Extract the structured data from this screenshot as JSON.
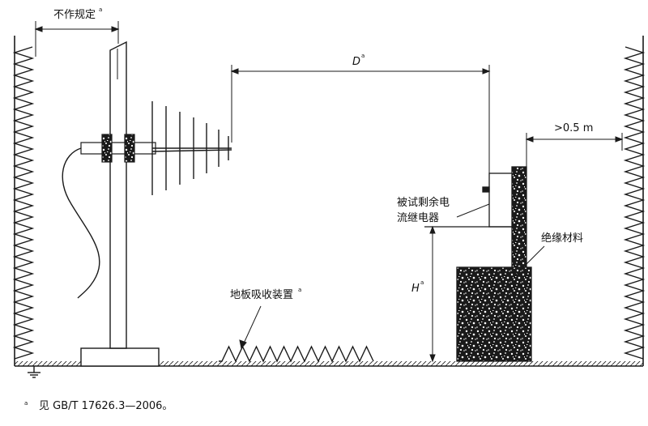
{
  "labels": {
    "unspecified": "不作规定",
    "distance_d": "D",
    "clearance": ">0.5 m",
    "device_line1": "被试剩余电",
    "device_line2": "流继电器",
    "insulating_material": "绝缘材料",
    "floor_absorber": "地板吸收装置",
    "height_h": "H",
    "footnote_marker": "a"
  },
  "footnote": {
    "marker": "a",
    "text": "见 GB/T 17626.3—2006。"
  },
  "colors": {
    "line": "#1a1a1a",
    "background": "#ffffff",
    "speckle_dark": "#151515",
    "speckle_light": "#ffffff"
  }
}
